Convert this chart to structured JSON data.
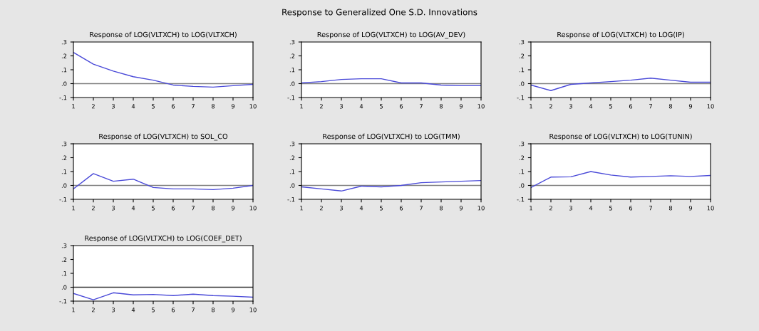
{
  "chart_data": [
    {
      "type": "other",
      "title": "Response to Generalized One S.D. Innovations"
    },
    {
      "type": "line",
      "title": "Response of LOG(VLTXCH) to LOG(VLTXCH)",
      "categories": [
        "1",
        "2",
        "3",
        "4",
        "5",
        "6",
        "7",
        "8",
        "9",
        "10"
      ],
      "series": [
        {
          "color": "#4a4ad8",
          "values": [
            0.225,
            0.14,
            0.09,
            0.05,
            0.025,
            -0.01,
            -0.02,
            -0.025,
            -0.015,
            -0.005
          ]
        }
      ],
      "ylim": [
        -0.1,
        0.3
      ],
      "yticks": [
        {
          "value": -0.1,
          "label": "-.1"
        },
        {
          "value": 0,
          "label": ".0"
        },
        {
          "value": 0.1,
          "label": ".1"
        },
        {
          "value": 0.2,
          "label": ".2"
        },
        {
          "value": 0.3,
          "label": ".3"
        }
      ],
      "ref_lines": [
        {
          "axis": "y",
          "value": 0,
          "color": "#808080"
        }
      ],
      "grid": false,
      "legend": false
    },
    {
      "type": "line",
      "title": "Response of LOG(VLTXCH) to LOG(AV_DEV)",
      "categories": [
        "1",
        "2",
        "3",
        "4",
        "5",
        "6",
        "7",
        "8",
        "9",
        "10"
      ],
      "series": [
        {
          "color": "#4a4ad8",
          "values": [
            0.005,
            0.015,
            0.03,
            0.035,
            0.035,
            0.005,
            0.005,
            -0.01,
            -0.015,
            -0.015
          ]
        }
      ],
      "ylim": [
        -0.1,
        0.3
      ],
      "yticks": [
        {
          "value": -0.1,
          "label": "-.1"
        },
        {
          "value": 0,
          "label": ".0"
        },
        {
          "value": 0.1,
          "label": ".1"
        },
        {
          "value": 0.2,
          "label": ".2"
        },
        {
          "value": 0.3,
          "label": ".3"
        }
      ],
      "ref_lines": [
        {
          "axis": "y",
          "value": 0,
          "color": "#808080"
        }
      ],
      "grid": false,
      "legend": false
    },
    {
      "type": "line",
      "title": "Response of LOG(VLTXCH) to LOG(IP)",
      "categories": [
        "1",
        "2",
        "3",
        "4",
        "5",
        "6",
        "7",
        "8",
        "9",
        "10"
      ],
      "series": [
        {
          "color": "#4a4ad8",
          "values": [
            -0.01,
            -0.05,
            -0.005,
            0.005,
            0.015,
            0.025,
            0.04,
            0.025,
            0.01,
            0.01
          ]
        }
      ],
      "ylim": [
        -0.1,
        0.3
      ],
      "yticks": [
        {
          "value": -0.1,
          "label": "-.1"
        },
        {
          "value": 0,
          "label": ".0"
        },
        {
          "value": 0.1,
          "label": ".1"
        },
        {
          "value": 0.2,
          "label": ".2"
        },
        {
          "value": 0.3,
          "label": ".3"
        }
      ],
      "ref_lines": [
        {
          "axis": "y",
          "value": 0,
          "color": "#808080"
        }
      ],
      "grid": false,
      "legend": false
    },
    {
      "type": "line",
      "title": "Response of LOG(VLTXCH) to SOL_CO",
      "categories": [
        "1",
        "2",
        "3",
        "4",
        "5",
        "6",
        "7",
        "8",
        "9",
        "10"
      ],
      "series": [
        {
          "color": "#4a4ad8",
          "values": [
            -0.025,
            0.085,
            0.03,
            0.045,
            -0.015,
            -0.025,
            -0.025,
            -0.03,
            -0.02,
            0.0
          ]
        }
      ],
      "ylim": [
        -0.1,
        0.3
      ],
      "yticks": [
        {
          "value": -0.1,
          "label": "-.1"
        },
        {
          "value": 0,
          "label": ".0"
        },
        {
          "value": 0.1,
          "label": ".1"
        },
        {
          "value": 0.2,
          "label": ".2"
        },
        {
          "value": 0.3,
          "label": ".3"
        }
      ],
      "ref_lines": [
        {
          "axis": "y",
          "value": 0,
          "color": "#808080"
        }
      ],
      "grid": false,
      "legend": false
    },
    {
      "type": "line",
      "title": "Response of LOG(VLTXCH) to LOG(TMM)",
      "categories": [
        "1",
        "2",
        "3",
        "4",
        "5",
        "6",
        "7",
        "8",
        "9",
        "10"
      ],
      "series": [
        {
          "color": "#4a4ad8",
          "values": [
            -0.01,
            -0.025,
            -0.04,
            -0.005,
            -0.01,
            0.0,
            0.02,
            0.025,
            0.03,
            0.035
          ]
        }
      ],
      "ylim": [
        -0.1,
        0.3
      ],
      "yticks": [
        {
          "value": -0.1,
          "label": "-.1"
        },
        {
          "value": 0,
          "label": ".0"
        },
        {
          "value": 0.1,
          "label": ".1"
        },
        {
          "value": 0.2,
          "label": ".2"
        },
        {
          "value": 0.3,
          "label": ".3"
        }
      ],
      "ref_lines": [
        {
          "axis": "y",
          "value": 0,
          "color": "#808080"
        }
      ],
      "grid": false,
      "legend": false
    },
    {
      "type": "line",
      "title": "Response of LOG(VLTXCH) to LOG(TUNIN)",
      "categories": [
        "1",
        "2",
        "3",
        "4",
        "5",
        "6",
        "7",
        "8",
        "9",
        "10"
      ],
      "series": [
        {
          "color": "#4a4ad8",
          "values": [
            -0.015,
            0.06,
            0.062,
            0.1,
            0.075,
            0.06,
            0.065,
            0.07,
            0.065,
            0.072
          ]
        }
      ],
      "ylim": [
        -0.1,
        0.3
      ],
      "yticks": [
        {
          "value": -0.1,
          "label": "-.1"
        },
        {
          "value": 0,
          "label": ".0"
        },
        {
          "value": 0.1,
          "label": ".1"
        },
        {
          "value": 0.2,
          "label": ".2"
        },
        {
          "value": 0.3,
          "label": ".3"
        }
      ],
      "ref_lines": [
        {
          "axis": "y",
          "value": 0,
          "color": "#808080"
        }
      ],
      "grid": false,
      "legend": false
    },
    {
      "type": "line",
      "title": "Response of LOG(VLTXCH) to LOG(COEF_DET)",
      "categories": [
        "1",
        "2",
        "3",
        "4",
        "5",
        "6",
        "7",
        "8",
        "9",
        "10"
      ],
      "series": [
        {
          "color": "#4a4ad8",
          "values": [
            -0.045,
            -0.09,
            -0.04,
            -0.055,
            -0.052,
            -0.06,
            -0.05,
            -0.06,
            -0.065,
            -0.072
          ]
        }
      ],
      "ylim": [
        -0.1,
        0.3
      ],
      "yticks": [
        {
          "value": -0.1,
          "label": "-.1"
        },
        {
          "value": 0,
          "label": ".0"
        },
        {
          "value": 0.1,
          "label": ".1"
        },
        {
          "value": 0.2,
          "label": ".2"
        },
        {
          "value": 0.3,
          "label": ".3"
        }
      ],
      "ref_lines": [
        {
          "axis": "y",
          "value": 0,
          "color": "#333333"
        }
      ],
      "grid": false,
      "legend": false
    }
  ]
}
